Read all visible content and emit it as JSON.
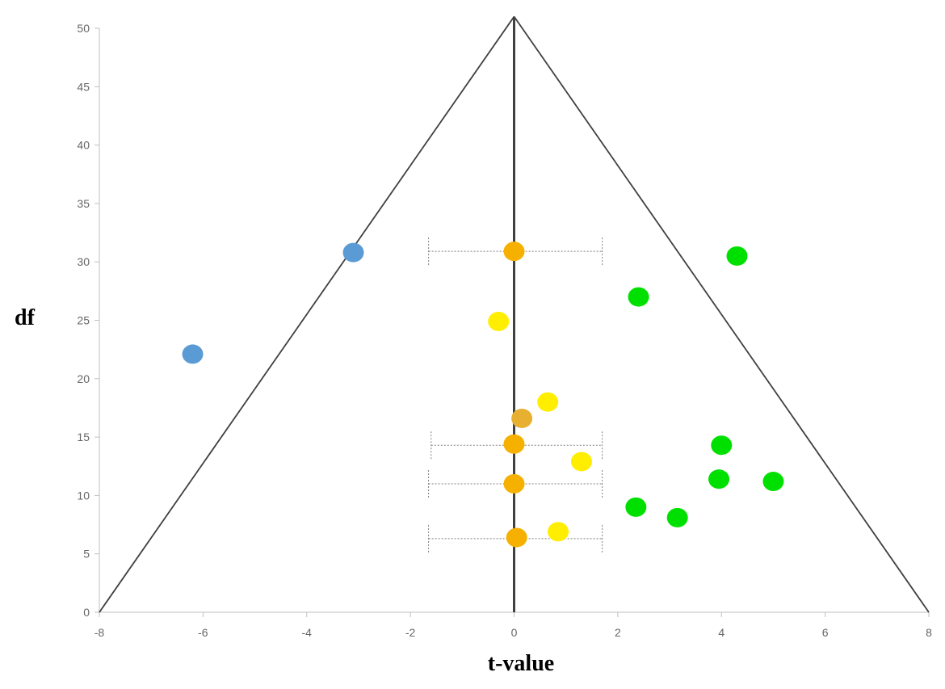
{
  "chart_data": {
    "type": "scatter",
    "title": "",
    "xlabel": "t-value",
    "ylabel": "df",
    "xlim": [
      -8,
      8
    ],
    "ylim": [
      0,
      50
    ],
    "x_ticks": [
      -8,
      -6,
      -4,
      -2,
      0,
      2,
      4,
      6,
      8
    ],
    "y_ticks": [
      0,
      5,
      10,
      15,
      20,
      25,
      30,
      35,
      40,
      45,
      50
    ],
    "grid": false,
    "legend": "none",
    "funnel": {
      "apex": [
        0,
        51
      ],
      "base_left": [
        -8,
        0
      ],
      "base_right": [
        8,
        0
      ]
    },
    "reference_line_x": 0,
    "series": [
      {
        "color": "#5b9bd5",
        "points": [
          [
            -3.1,
            30.8
          ],
          [
            -6.2,
            22.1
          ]
        ]
      },
      {
        "color": "#00e000",
        "points": [
          [
            4.3,
            30.5
          ],
          [
            2.4,
            27.0
          ],
          [
            4.0,
            14.3
          ],
          [
            3.95,
            11.4
          ],
          [
            5.0,
            11.2
          ],
          [
            2.35,
            9.0
          ],
          [
            3.15,
            8.1
          ]
        ]
      },
      {
        "color": "#ffee00",
        "points": [
          [
            -0.3,
            24.9
          ],
          [
            0.65,
            18.0
          ],
          [
            1.3,
            12.9
          ],
          [
            0.85,
            6.9
          ]
        ]
      },
      {
        "color": "#e8b030",
        "points": [
          [
            0.15,
            16.6
          ]
        ]
      },
      {
        "color": "#f5b000",
        "points": [
          [
            0.0,
            30.9
          ],
          [
            0.0,
            14.4
          ],
          [
            0.0,
            11.0
          ],
          [
            0.05,
            6.4
          ]
        ]
      }
    ],
    "error_bars": [
      {
        "y": 30.9,
        "x_low": -1.65,
        "x_high": 1.7
      },
      {
        "y": 14.3,
        "x_low": -1.6,
        "x_high": 1.7
      },
      {
        "y": 11.0,
        "x_low": -1.65,
        "x_high": 1.7
      },
      {
        "y": 6.3,
        "x_low": -1.65,
        "x_high": 1.7
      }
    ],
    "colors": {
      "axis": "#bfbfbf",
      "tick_label": "#666666",
      "funnel_line": "#404040",
      "error_bar": "#808080"
    }
  }
}
